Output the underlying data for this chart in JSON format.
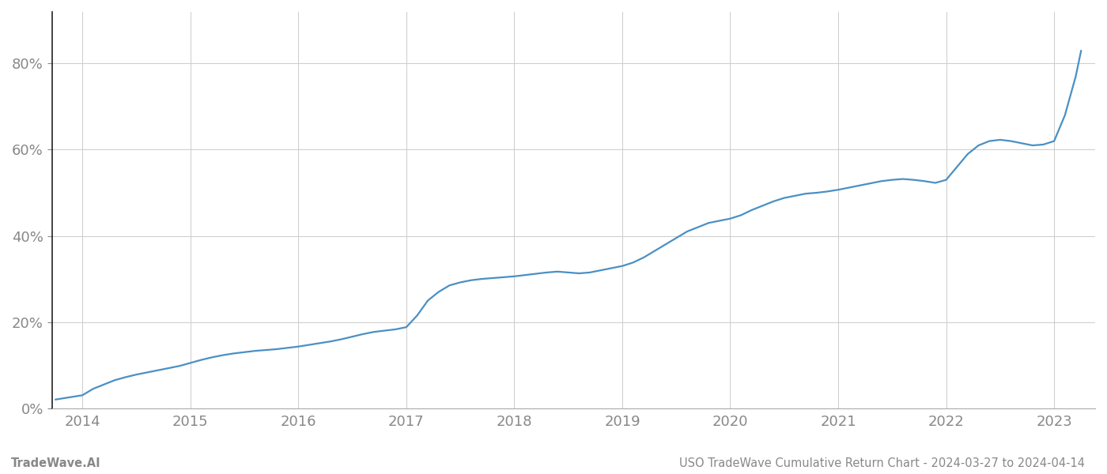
{
  "title": "USO TradeWave Cumulative Return Chart - 2024-03-27 to 2024-04-14",
  "watermark": "TradeWave.AI",
  "line_color": "#4a90c4",
  "background_color": "#ffffff",
  "grid_color": "#cccccc",
  "x_years": [
    2014,
    2015,
    2016,
    2017,
    2018,
    2019,
    2020,
    2021,
    2022,
    2023
  ],
  "x_data": [
    2013.75,
    2014.0,
    2014.1,
    2014.2,
    2014.3,
    2014.4,
    2014.5,
    2014.6,
    2014.7,
    2014.8,
    2014.9,
    2015.0,
    2015.1,
    2015.2,
    2015.3,
    2015.4,
    2015.5,
    2015.6,
    2015.7,
    2015.8,
    2015.9,
    2016.0,
    2016.1,
    2016.2,
    2016.3,
    2016.4,
    2016.5,
    2016.6,
    2016.7,
    2016.8,
    2016.9,
    2017.0,
    2017.1,
    2017.2,
    2017.3,
    2017.4,
    2017.5,
    2017.6,
    2017.7,
    2017.8,
    2017.9,
    2018.0,
    2018.1,
    2018.2,
    2018.3,
    2018.4,
    2018.5,
    2018.6,
    2018.7,
    2018.8,
    2018.9,
    2019.0,
    2019.1,
    2019.2,
    2019.3,
    2019.4,
    2019.5,
    2019.6,
    2019.7,
    2019.8,
    2019.9,
    2020.0,
    2020.1,
    2020.2,
    2020.3,
    2020.4,
    2020.5,
    2020.6,
    2020.7,
    2020.8,
    2020.9,
    2021.0,
    2021.1,
    2021.2,
    2021.3,
    2021.4,
    2021.5,
    2021.6,
    2021.7,
    2021.8,
    2021.9,
    2022.0,
    2022.1,
    2022.2,
    2022.3,
    2022.4,
    2022.5,
    2022.6,
    2022.7,
    2022.8,
    2022.9,
    2023.0,
    2023.1,
    2023.2,
    2023.25
  ],
  "y_data": [
    2.0,
    3.0,
    4.5,
    5.5,
    6.5,
    7.2,
    7.8,
    8.3,
    8.8,
    9.3,
    9.8,
    10.5,
    11.2,
    11.8,
    12.3,
    12.7,
    13.0,
    13.3,
    13.5,
    13.7,
    14.0,
    14.3,
    14.7,
    15.1,
    15.5,
    16.0,
    16.6,
    17.2,
    17.7,
    18.0,
    18.3,
    18.8,
    21.5,
    25.0,
    27.0,
    28.5,
    29.2,
    29.7,
    30.0,
    30.2,
    30.4,
    30.6,
    30.9,
    31.2,
    31.5,
    31.7,
    31.5,
    31.3,
    31.5,
    32.0,
    32.5,
    33.0,
    33.8,
    35.0,
    36.5,
    38.0,
    39.5,
    41.0,
    42.0,
    43.0,
    43.5,
    44.0,
    44.8,
    46.0,
    47.0,
    48.0,
    48.8,
    49.3,
    49.8,
    50.0,
    50.3,
    50.7,
    51.2,
    51.7,
    52.2,
    52.7,
    53.0,
    53.2,
    53.0,
    52.7,
    52.3,
    53.0,
    56.0,
    59.0,
    61.0,
    62.0,
    62.3,
    62.0,
    61.5,
    61.0,
    61.2,
    62.0,
    68.0,
    77.0,
    83.0
  ],
  "ylim": [
    0,
    92
  ],
  "yticks": [
    0,
    20,
    40,
    60,
    80
  ],
  "ytick_labels": [
    "0%",
    "20%",
    "40%",
    "60%",
    "80%"
  ],
  "xlim": [
    2013.72,
    2023.38
  ],
  "title_fontsize": 10.5,
  "watermark_fontsize": 10.5,
  "tick_fontsize": 13,
  "tick_color": "#888888",
  "left_spine_color": "#222222",
  "bottom_spine_color": "#aaaaaa",
  "line_width": 1.6
}
